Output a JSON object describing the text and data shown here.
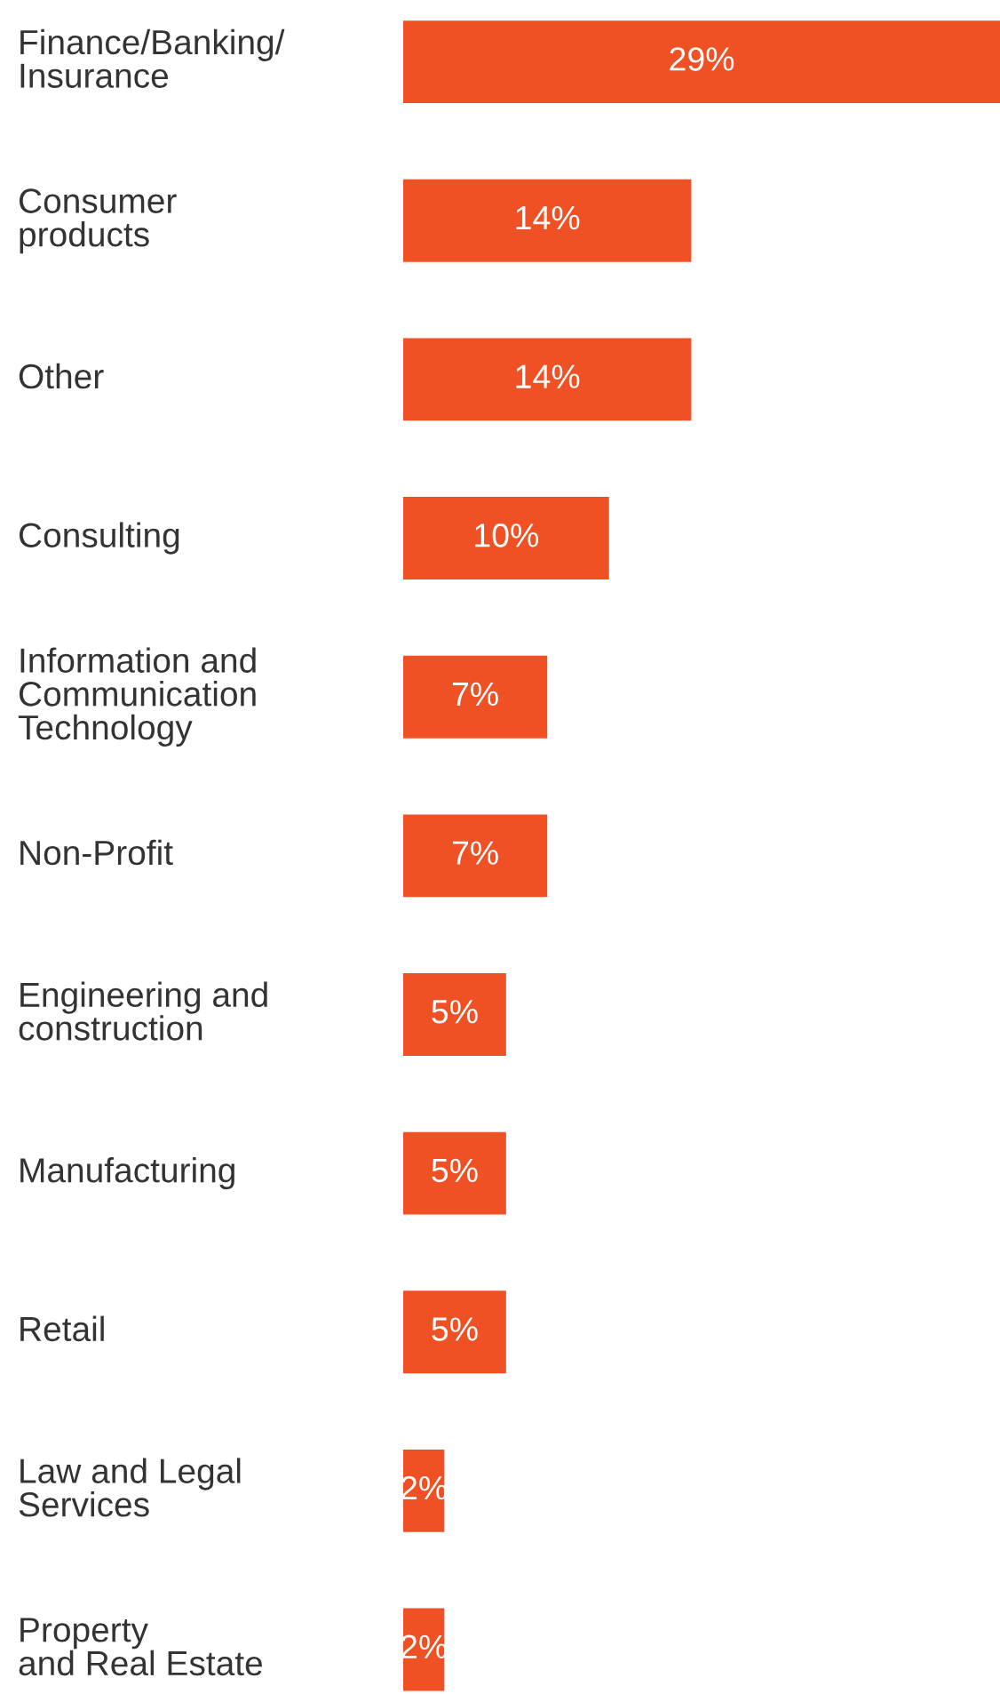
{
  "chart_data": {
    "type": "bar",
    "orientation": "horizontal",
    "color": "#f05124",
    "categories": [
      "Finance/Banking/\nInsurance",
      "Consumer\nproducts",
      "Other",
      "Consulting",
      "Information and\nCommunication\nTechnology",
      "Non-Profit",
      "Engineering and\nconstruction",
      "Manufacturing",
      "Retail",
      "Law and Legal\nServices",
      "Property\nand Real Estate"
    ],
    "values": [
      29,
      14,
      14,
      10,
      7,
      7,
      5,
      5,
      5,
      2,
      2
    ],
    "value_labels": [
      "29%",
      "14%",
      "14%",
      "10%",
      "7%",
      "7%",
      "5%",
      "5%",
      "5%",
      "2%",
      "2%"
    ],
    "tick_labels": "y"
  }
}
